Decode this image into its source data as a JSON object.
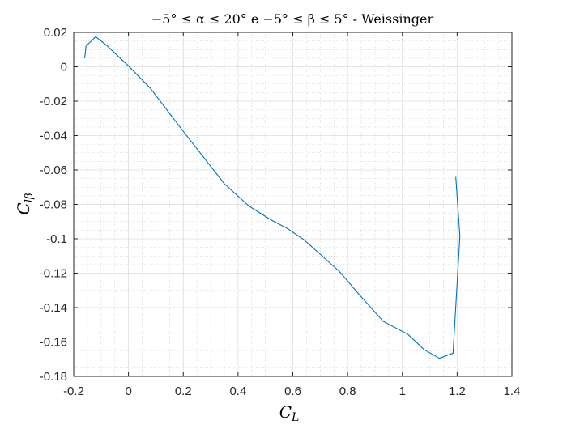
{
  "chart_data": {
    "type": "line",
    "title": "−5° ≤ α ≤ 20° e −5° ≤ β ≤ 5° - Weissinger",
    "xlabel": "C",
    "xlabel_sub": "L",
    "ylabel": "C",
    "ylabel_sub": "lβ",
    "xlim": [
      -0.2,
      1.4
    ],
    "ylim": [
      -0.18,
      0.02
    ],
    "xticks": [
      -0.2,
      0,
      0.2,
      0.4,
      0.6,
      0.8,
      1,
      1.2,
      1.4
    ],
    "xtick_labels": [
      "-0.2",
      "0",
      "0.2",
      "0.4",
      "0.6",
      "0.8",
      "1",
      "1.2",
      "1.4"
    ],
    "yticks": [
      0.02,
      0,
      -0.02,
      -0.04,
      -0.06,
      -0.08,
      -0.1,
      -0.12,
      -0.14,
      -0.16,
      -0.18
    ],
    "ytick_labels": [
      "0.02",
      "0",
      "-0.02",
      "-0.04",
      "-0.06",
      "-0.08",
      "-0.1",
      "-0.12",
      "-0.14",
      "-0.16",
      "-0.18"
    ],
    "grid": true,
    "minor_grid": true,
    "series": [
      {
        "color": "#0072BD",
        "x": [
          -0.16,
          -0.155,
          -0.12,
          -0.08,
          0.0,
          0.08,
          0.2,
          0.35,
          0.44,
          0.52,
          0.58,
          0.64,
          0.7,
          0.77,
          0.84,
          0.93,
          1.02,
          1.08,
          1.135,
          1.185,
          1.21,
          1.195
        ],
        "y": [
          0.005,
          0.012,
          0.0175,
          0.0125,
          0.0005,
          -0.0125,
          -0.0375,
          -0.068,
          -0.081,
          -0.089,
          -0.094,
          -0.1005,
          -0.109,
          -0.119,
          -0.132,
          -0.148,
          -0.1555,
          -0.1645,
          -0.1695,
          -0.1665,
          -0.0985,
          -0.064
        ]
      }
    ]
  }
}
